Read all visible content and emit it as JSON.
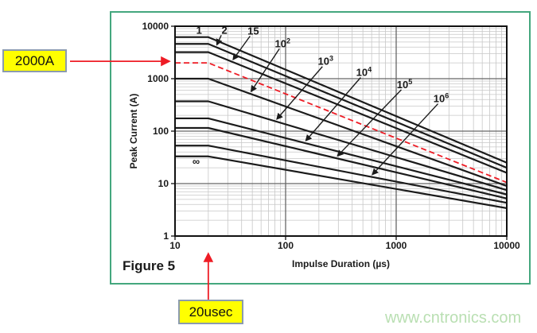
{
  "figure_caption": "Figure 5",
  "watermark": "www.cntronics.com",
  "annotations": {
    "peak": {
      "label": "2000A",
      "y": 2000
    },
    "duration": {
      "label": "20usec",
      "x": 20
    }
  },
  "colors": {
    "frame_green": "#44a77e",
    "curve_black": "#1b1b1b",
    "accent_red": "#ee1c25",
    "callout_yellow": "#ffff00",
    "callout_border_gray": "#8b9bae",
    "grid_major": "#666666",
    "grid_minor": "#c7c7c7",
    "watermark_green": "#b9dfb2",
    "text_dark": "#1a1a1a"
  },
  "chart_data": {
    "type": "line",
    "title": "",
    "xlabel": "Impulse Duration (µs)",
    "ylabel": "Peak Current (A)",
    "x_scale": "log",
    "y_scale": "log",
    "xlim": [
      10,
      10000
    ],
    "ylim": [
      1,
      10000
    ],
    "x_ticks": [
      10,
      100,
      1000,
      10000
    ],
    "y_ticks": [
      1,
      10,
      100,
      1000,
      10000
    ],
    "grid": "log major+minor",
    "legend": "inline curve labels with leader arrows",
    "series": [
      {
        "name": "1",
        "sup": null,
        "anchor": [
          16.5,
          8300
        ],
        "leader_x": null,
        "points": [
          [
            10,
            6200
          ],
          [
            20,
            6200
          ],
          [
            10000,
            25
          ]
        ]
      },
      {
        "name": "2",
        "sup": null,
        "anchor": [
          28,
          8300
        ],
        "leader_x": 23.5,
        "points": [
          [
            10,
            4600
          ],
          [
            20,
            4600
          ],
          [
            10000,
            20
          ]
        ]
      },
      {
        "name": "15",
        "sup": null,
        "anchor": [
          51,
          8000
        ],
        "leader_x": 33,
        "points": [
          [
            10,
            3200
          ],
          [
            20,
            3200
          ],
          [
            10000,
            16
          ]
        ]
      },
      {
        "name": "10",
        "sup": "2",
        "anchor": [
          94,
          4600
        ],
        "leader_x": 48,
        "points": [
          [
            10,
            1000
          ],
          [
            20,
            1000
          ],
          [
            10000,
            9
          ]
        ]
      },
      {
        "name": "10",
        "sup": "3",
        "anchor": [
          230,
          2100
        ],
        "leader_x": 82,
        "points": [
          [
            10,
            370
          ],
          [
            20,
            370
          ],
          [
            10000,
            7.5
          ]
        ]
      },
      {
        "name": "10",
        "sup": "4",
        "anchor": [
          510,
          1300
        ],
        "leader_x": 150,
        "points": [
          [
            10,
            175
          ],
          [
            20,
            175
          ],
          [
            10000,
            6.2
          ]
        ]
      },
      {
        "name": "10",
        "sup": "5",
        "anchor": [
          1190,
          760
        ],
        "leader_x": 290,
        "points": [
          [
            10,
            115
          ],
          [
            20,
            115
          ],
          [
            10000,
            5.2
          ]
        ]
      },
      {
        "name": "10",
        "sup": "6",
        "anchor": [
          2550,
          410
        ],
        "leader_x": 600,
        "points": [
          [
            10,
            53
          ],
          [
            20,
            53
          ],
          [
            10000,
            4.3
          ]
        ]
      },
      {
        "name": "∞",
        "sup": null,
        "anchor": [
          15.5,
          26
        ],
        "leader_x": null,
        "points": [
          [
            10,
            33
          ],
          [
            20,
            33
          ],
          [
            10000,
            3.4
          ]
        ]
      }
    ],
    "reference_series": {
      "name": "2000A reference",
      "style": "red-dashed",
      "points": [
        [
          10,
          2000
        ],
        [
          20,
          2000
        ],
        [
          10000,
          10.5
        ]
      ]
    }
  }
}
